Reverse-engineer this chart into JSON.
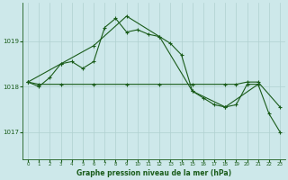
{
  "background_color": "#cde8ea",
  "grid_color": "#b0d0d0",
  "line_color": "#1a5c1a",
  "title": "Graphe pression niveau de la mer (hPa)",
  "xlim": [
    -0.5,
    23.5
  ],
  "ylim": [
    1016.4,
    1019.85
  ],
  "yticks": [
    1017,
    1018,
    1019
  ],
  "xticks": [
    0,
    1,
    2,
    3,
    4,
    5,
    6,
    7,
    8,
    9,
    10,
    11,
    12,
    13,
    14,
    15,
    16,
    17,
    18,
    19,
    20,
    21,
    22,
    23
  ],
  "series": [
    {
      "x": [
        0,
        1,
        2,
        3,
        4,
        5,
        6,
        7,
        8,
        9,
        10,
        11,
        12,
        13,
        14,
        15,
        16,
        17,
        18,
        19,
        20,
        21,
        22,
        23
      ],
      "y": [
        1018.1,
        1018.0,
        1018.2,
        1018.5,
        1018.55,
        1018.4,
        1018.55,
        1019.3,
        1019.5,
        1019.2,
        1019.25,
        1019.15,
        1019.1,
        1018.95,
        1018.7,
        1017.9,
        1017.75,
        1017.6,
        1017.55,
        1017.6,
        1018.05,
        1018.05,
        1017.4,
        1017.0
      ]
    },
    {
      "x": [
        0,
        3,
        6,
        9,
        12,
        15,
        18,
        21
      ],
      "y": [
        1018.1,
        1018.5,
        1018.9,
        1019.55,
        1019.1,
        1017.9,
        1017.55,
        1018.05
      ]
    },
    {
      "x": [
        0,
        1,
        3,
        6,
        9,
        12,
        15,
        18,
        19,
        20,
        21,
        23
      ],
      "y": [
        1018.1,
        1018.05,
        1018.05,
        1018.05,
        1018.05,
        1018.05,
        1018.05,
        1018.05,
        1018.05,
        1018.1,
        1018.1,
        1017.55
      ]
    }
  ]
}
